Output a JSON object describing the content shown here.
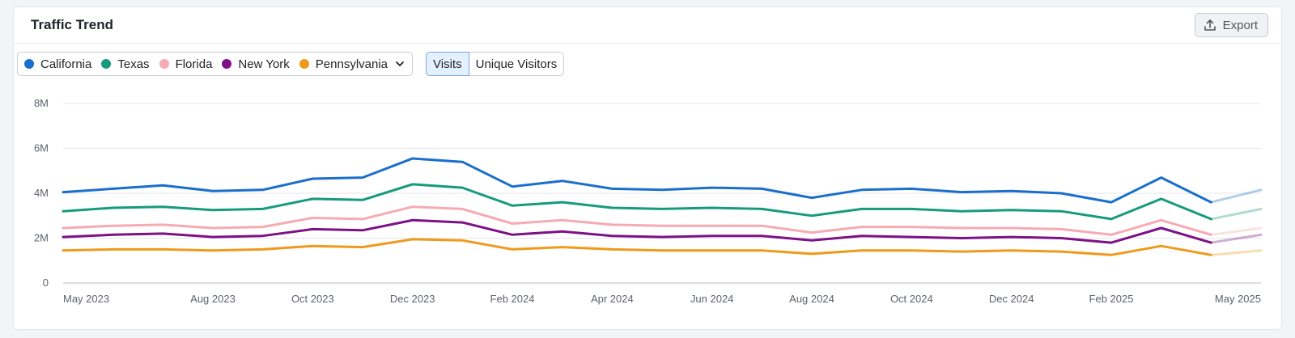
{
  "header": {
    "title": "Traffic Trend",
    "export_label": "Export"
  },
  "legend": {
    "items": [
      {
        "label": "California",
        "color": "#1a6fcc"
      },
      {
        "label": "Texas",
        "color": "#169b7c"
      },
      {
        "label": "Florida",
        "color": "#f6aab3"
      },
      {
        "label": "New York",
        "color": "#7d1287"
      },
      {
        "label": "Pennsylvania",
        "color": "#ef9a1a"
      }
    ]
  },
  "toggle": {
    "visits_label": "Visits",
    "unique_label": "Unique Visitors",
    "selected": "Visits"
  },
  "chart_data": {
    "type": "line",
    "title": "Traffic Trend",
    "x": [
      "May 2023",
      "Jun 2023",
      "Jul 2023",
      "Aug 2023",
      "Sep 2023",
      "Oct 2023",
      "Nov 2023",
      "Dec 2023",
      "Jan 2024",
      "Feb 2024",
      "Mar 2024",
      "Apr 2024",
      "May 2024",
      "Jun 2024",
      "Jul 2024",
      "Aug 2024",
      "Sep 2024",
      "Oct 2024",
      "Nov 2024",
      "Dec 2024",
      "Jan 2025",
      "Feb 2025",
      "Mar 2025",
      "Apr 2025",
      "May 2025"
    ],
    "x_tick_labels": [
      "May 2023",
      "Aug 2023",
      "Oct 2023",
      "Dec 2023",
      "Feb 2024",
      "Apr 2024",
      "Jun 2024",
      "Aug 2024",
      "Oct 2024",
      "Dec 2024",
      "Feb 2025",
      "May 2025"
    ],
    "x_tick_indices": [
      0,
      3,
      5,
      7,
      9,
      11,
      13,
      15,
      17,
      19,
      21,
      24
    ],
    "y_tick_labels": [
      "0",
      "2M",
      "4M",
      "6M",
      "8M"
    ],
    "ylim": [
      0,
      8000000
    ],
    "grid": true,
    "incomplete_last_segment": true,
    "series": [
      {
        "name": "California",
        "color": "#1a6fcc",
        "values": [
          4.05,
          4.2,
          4.35,
          4.1,
          4.15,
          4.65,
          4.7,
          5.55,
          5.4,
          4.3,
          4.55,
          4.2,
          4.15,
          4.25,
          4.2,
          3.8,
          4.15,
          4.2,
          4.05,
          4.1,
          4.0,
          3.6,
          4.7,
          3.6,
          4.15
        ]
      },
      {
        "name": "Texas",
        "color": "#169b7c",
        "values": [
          3.2,
          3.35,
          3.4,
          3.25,
          3.3,
          3.75,
          3.7,
          4.4,
          4.25,
          3.45,
          3.6,
          3.35,
          3.3,
          3.35,
          3.3,
          3.0,
          3.3,
          3.3,
          3.2,
          3.25,
          3.2,
          2.85,
          3.75,
          2.85,
          3.3
        ]
      },
      {
        "name": "Florida",
        "color": "#f6aab3",
        "values": [
          2.45,
          2.55,
          2.6,
          2.45,
          2.5,
          2.9,
          2.85,
          3.4,
          3.3,
          2.65,
          2.8,
          2.6,
          2.55,
          2.55,
          2.55,
          2.25,
          2.5,
          2.5,
          2.45,
          2.45,
          2.4,
          2.15,
          2.8,
          2.15,
          2.45
        ]
      },
      {
        "name": "New York",
        "color": "#7d1287",
        "values": [
          2.05,
          2.15,
          2.2,
          2.05,
          2.1,
          2.4,
          2.35,
          2.8,
          2.7,
          2.15,
          2.3,
          2.1,
          2.05,
          2.1,
          2.1,
          1.9,
          2.1,
          2.05,
          2.0,
          2.05,
          2.0,
          1.8,
          2.45,
          1.8,
          2.15
        ]
      },
      {
        "name": "Pennsylvania",
        "color": "#ef9a1a",
        "values": [
          1.45,
          1.5,
          1.5,
          1.45,
          1.5,
          1.65,
          1.6,
          1.95,
          1.9,
          1.5,
          1.6,
          1.5,
          1.45,
          1.45,
          1.45,
          1.3,
          1.45,
          1.45,
          1.4,
          1.45,
          1.4,
          1.25,
          1.65,
          1.25,
          1.45
        ]
      }
    ],
    "value_unit": "millions of visits"
  }
}
